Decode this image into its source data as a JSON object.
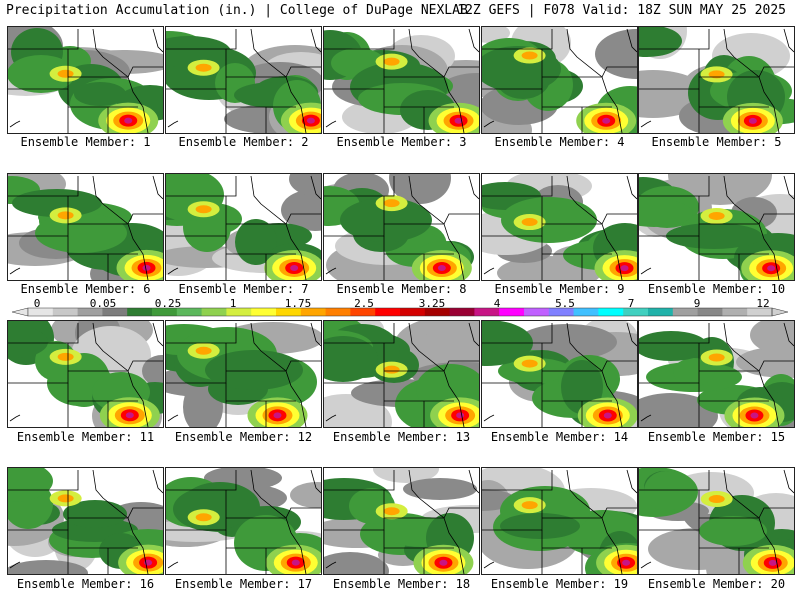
{
  "header": {
    "left": "Precipitation Accumulation (in.) | College of DuPage NEXLAB",
    "right": "12Z GEFS | F078 Valid: 18Z SUN MAY 25 2025"
  },
  "panel_prefix": "Ensemble Member: ",
  "members": [
    1,
    2,
    3,
    4,
    5,
    6,
    7,
    8,
    9,
    10,
    11,
    12,
    13,
    14,
    15,
    16,
    17,
    18,
    19,
    20
  ],
  "colorbar": {
    "labels": [
      "0",
      "0.05",
      "0.25",
      "1",
      "1.75",
      "2.5",
      "3.25",
      "4",
      "5.5",
      "7",
      "9",
      "12"
    ],
    "colors": [
      "#e6e6e6",
      "#c8c8c8",
      "#a0a0a0",
      "#7d7d7d",
      "#2e7d32",
      "#3f9a3a",
      "#5cb85c",
      "#8fd14f",
      "#d4ee3f",
      "#ffff33",
      "#ffd700",
      "#ffa500",
      "#ff7f00",
      "#ff4500",
      "#ff0000",
      "#d40000",
      "#a50000",
      "#990033",
      "#c71585",
      "#ff00ff",
      "#c060ff",
      "#8080ff",
      "#40c0ff",
      "#00ffff",
      "#40d0c0",
      "#20b2aa",
      "#a0a0a0",
      "#888888",
      "#b0b0b0",
      "#d0d0d0"
    ]
  }
}
